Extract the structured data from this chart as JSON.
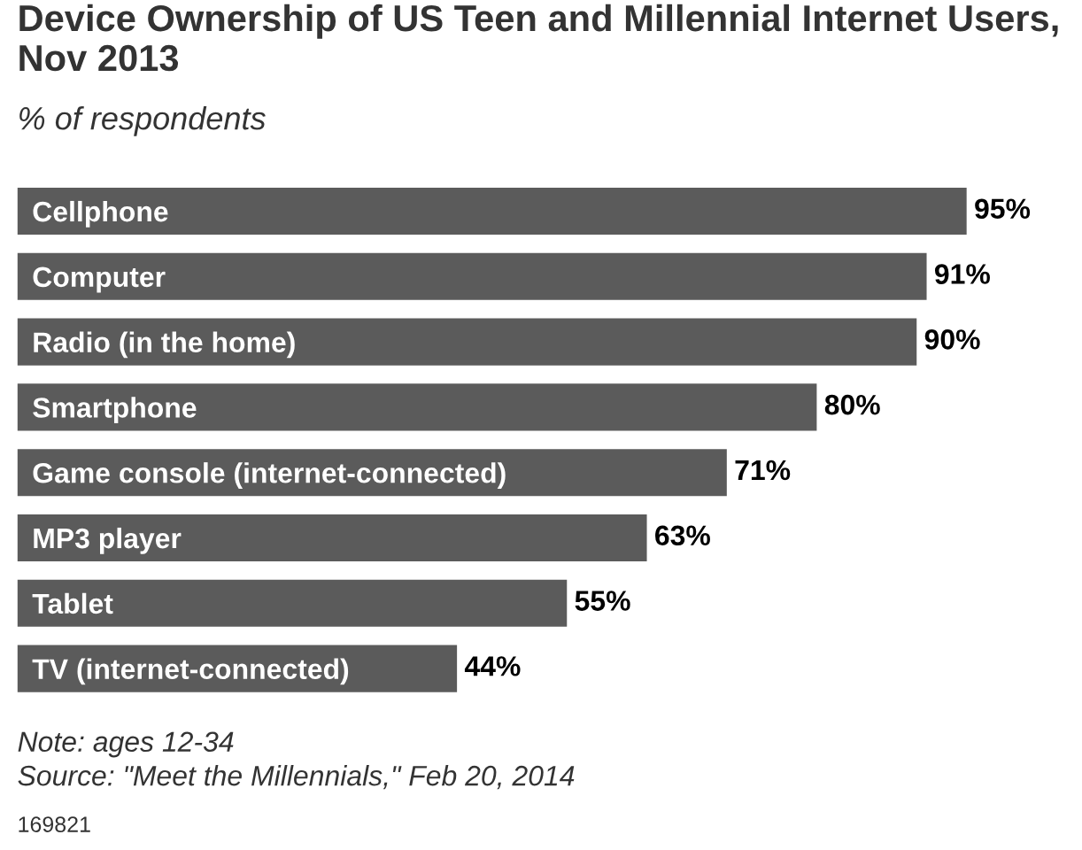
{
  "chart_data": {
    "type": "bar",
    "orientation": "horizontal",
    "title": "Device Ownership of US Teen and Millennial Internet Users, Nov 2013",
    "subtitle": "% of respondents",
    "categories": [
      "Cellphone",
      "Computer",
      "Radio (in the home)",
      "Smartphone",
      "Game console (internet-connected)",
      "MP3 player",
      "Tablet",
      "TV (internet-connected)"
    ],
    "values": [
      95,
      91,
      90,
      80,
      71,
      63,
      55,
      44
    ],
    "value_labels": [
      "95%",
      "91%",
      "90%",
      "80%",
      "71%",
      "63%",
      "55%",
      "44%"
    ],
    "color": "#5b5b5b",
    "annotations": [
      "Note: ages 12-34",
      "Source: \"Meet the Millennials,\" Feb 20, 2014",
      "169821"
    ]
  }
}
